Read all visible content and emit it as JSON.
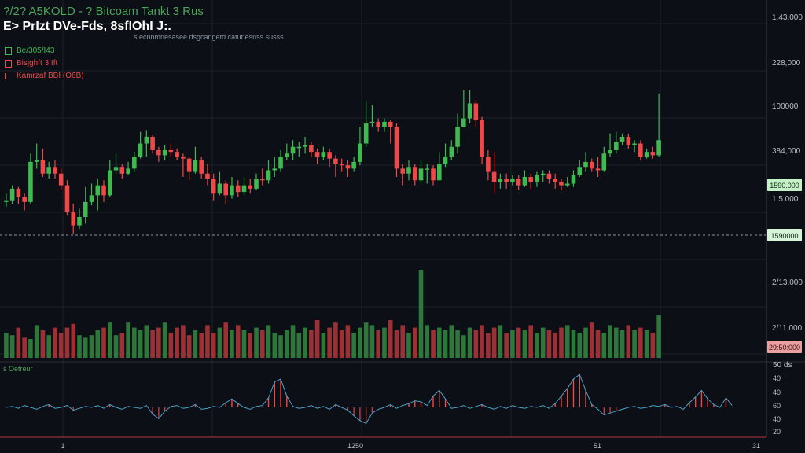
{
  "header": {
    "title": "?/2? A5KOLD - ? Bitcoam Tankt 3 Rus",
    "subtitle": "E> PrIzt DVe-Fds, 8sfIOhI J:.",
    "description": "s ecnnmnesasee dsgcangetd catunesnss susss"
  },
  "legend": [
    {
      "label": "Be/305/I43",
      "color": "#3fb950"
    },
    {
      "label": "Bisjghft 3 Ift",
      "color": "#f04848"
    },
    {
      "label": "Kamrzaf BBI (O6B)",
      "color": "#f04848"
    }
  ],
  "price_axis": {
    "labels": [
      "1.43,000",
      "228,000",
      "100000",
      "384,000",
      "1.5.000",
      "2/13,000",
      "2/11,000"
    ],
    "tag_upper": "1590.000",
    "tag_current": "1590000",
    "tag_volume": "29:50:000"
  },
  "indicator": {
    "label": "s Oetreur",
    "axis_top": "50 ds",
    "axis_labels": [
      "40",
      "40",
      "60",
      "40",
      "20"
    ]
  },
  "time_axis": {
    "labels": [
      "1",
      "1250",
      "51",
      "31"
    ]
  },
  "colors": {
    "up": "#3fb950",
    "down": "#f04848",
    "background": "#0c0f16",
    "grid": "#1b2029",
    "axis_text": "#b8bec8"
  },
  "chart_data": {
    "type": "candlestick",
    "y_range": [
      0,
      100
    ],
    "candles": [
      {
        "o": 45,
        "c": 46,
        "h": 50,
        "l": 42
      },
      {
        "o": 46,
        "c": 53,
        "h": 55,
        "l": 44
      },
      {
        "o": 53,
        "c": 48,
        "h": 54,
        "l": 44
      },
      {
        "o": 48,
        "c": 45,
        "h": 50,
        "l": 40
      },
      {
        "o": 45,
        "c": 69,
        "h": 74,
        "l": 44
      },
      {
        "o": 69,
        "c": 70,
        "h": 80,
        "l": 65
      },
      {
        "o": 70,
        "c": 62,
        "h": 77,
        "l": 60
      },
      {
        "o": 62,
        "c": 66,
        "h": 69,
        "l": 59
      },
      {
        "o": 66,
        "c": 62,
        "h": 70,
        "l": 59
      },
      {
        "o": 62,
        "c": 55,
        "h": 65,
        "l": 52
      },
      {
        "o": 55,
        "c": 39,
        "h": 58,
        "l": 37
      },
      {
        "o": 39,
        "c": 31,
        "h": 44,
        "l": 26
      },
      {
        "o": 31,
        "c": 36,
        "h": 41,
        "l": 29
      },
      {
        "o": 36,
        "c": 45,
        "h": 54,
        "l": 32
      },
      {
        "o": 45,
        "c": 49,
        "h": 56,
        "l": 43
      },
      {
        "o": 49,
        "c": 55,
        "h": 59,
        "l": 40
      },
      {
        "o": 55,
        "c": 49,
        "h": 58,
        "l": 45
      },
      {
        "o": 49,
        "c": 64,
        "h": 70,
        "l": 48
      },
      {
        "o": 64,
        "c": 66,
        "h": 74,
        "l": 62
      },
      {
        "o": 66,
        "c": 62,
        "h": 68,
        "l": 59
      },
      {
        "o": 62,
        "c": 65,
        "h": 69,
        "l": 61
      },
      {
        "o": 65,
        "c": 72,
        "h": 75,
        "l": 63
      },
      {
        "o": 72,
        "c": 80,
        "h": 87,
        "l": 71
      },
      {
        "o": 80,
        "c": 84,
        "h": 88,
        "l": 72
      },
      {
        "o": 84,
        "c": 76,
        "h": 85,
        "l": 74
      },
      {
        "o": 76,
        "c": 73,
        "h": 78,
        "l": 69
      },
      {
        "o": 73,
        "c": 76,
        "h": 79,
        "l": 70
      },
      {
        "o": 76,
        "c": 75,
        "h": 80,
        "l": 72
      },
      {
        "o": 75,
        "c": 72,
        "h": 77,
        "l": 70
      },
      {
        "o": 72,
        "c": 71,
        "h": 74,
        "l": 60
      },
      {
        "o": 71,
        "c": 63,
        "h": 72,
        "l": 58
      },
      {
        "o": 63,
        "c": 70,
        "h": 78,
        "l": 62
      },
      {
        "o": 70,
        "c": 62,
        "h": 72,
        "l": 59
      },
      {
        "o": 62,
        "c": 59,
        "h": 68,
        "l": 55
      },
      {
        "o": 59,
        "c": 50,
        "h": 62,
        "l": 46
      },
      {
        "o": 50,
        "c": 56,
        "h": 63,
        "l": 49
      },
      {
        "o": 56,
        "c": 49,
        "h": 58,
        "l": 44
      },
      {
        "o": 49,
        "c": 55,
        "h": 60,
        "l": 47
      },
      {
        "o": 55,
        "c": 51,
        "h": 58,
        "l": 48
      },
      {
        "o": 51,
        "c": 55,
        "h": 60,
        "l": 49
      },
      {
        "o": 55,
        "c": 53,
        "h": 59,
        "l": 50
      },
      {
        "o": 53,
        "c": 59,
        "h": 62,
        "l": 52
      },
      {
        "o": 59,
        "c": 58,
        "h": 65,
        "l": 55
      },
      {
        "o": 58,
        "c": 64,
        "h": 70,
        "l": 56
      },
      {
        "o": 64,
        "c": 65,
        "h": 72,
        "l": 60
      },
      {
        "o": 65,
        "c": 72,
        "h": 76,
        "l": 63
      },
      {
        "o": 72,
        "c": 74,
        "h": 80,
        "l": 70
      },
      {
        "o": 74,
        "c": 78,
        "h": 82,
        "l": 70
      },
      {
        "o": 78,
        "c": 78,
        "h": 81,
        "l": 72
      },
      {
        "o": 78,
        "c": 79,
        "h": 84,
        "l": 74
      },
      {
        "o": 79,
        "c": 75,
        "h": 81,
        "l": 72
      },
      {
        "o": 75,
        "c": 72,
        "h": 77,
        "l": 68
      },
      {
        "o": 72,
        "c": 75,
        "h": 78,
        "l": 70
      },
      {
        "o": 75,
        "c": 71,
        "h": 77,
        "l": 66
      },
      {
        "o": 71,
        "c": 68,
        "h": 73,
        "l": 60
      },
      {
        "o": 68,
        "c": 67,
        "h": 71,
        "l": 63
      },
      {
        "o": 67,
        "c": 65,
        "h": 70,
        "l": 60
      },
      {
        "o": 65,
        "c": 69,
        "h": 72,
        "l": 63
      },
      {
        "o": 69,
        "c": 80,
        "h": 90,
        "l": 67
      },
      {
        "o": 80,
        "c": 92,
        "h": 105,
        "l": 78
      },
      {
        "o": 92,
        "c": 93,
        "h": 103,
        "l": 90
      },
      {
        "o": 93,
        "c": 90,
        "h": 95,
        "l": 87
      },
      {
        "o": 90,
        "c": 93,
        "h": 95,
        "l": 87
      },
      {
        "o": 93,
        "c": 90,
        "h": 94,
        "l": 80
      },
      {
        "o": 90,
        "c": 65,
        "h": 92,
        "l": 60
      },
      {
        "o": 65,
        "c": 62,
        "h": 68,
        "l": 55
      },
      {
        "o": 62,
        "c": 66,
        "h": 70,
        "l": 58
      },
      {
        "o": 66,
        "c": 58,
        "h": 68,
        "l": 55
      },
      {
        "o": 58,
        "c": 65,
        "h": 70,
        "l": 56
      },
      {
        "o": 65,
        "c": 65,
        "h": 68,
        "l": 56
      },
      {
        "o": 65,
        "c": 58,
        "h": 67,
        "l": 55
      },
      {
        "o": 58,
        "c": 68,
        "h": 75,
        "l": 58
      },
      {
        "o": 68,
        "c": 72,
        "h": 80,
        "l": 66
      },
      {
        "o": 72,
        "c": 78,
        "h": 82,
        "l": 70
      },
      {
        "o": 78,
        "c": 90,
        "h": 98,
        "l": 74
      },
      {
        "o": 90,
        "c": 95,
        "h": 112,
        "l": 90
      },
      {
        "o": 95,
        "c": 104,
        "h": 112,
        "l": 92
      },
      {
        "o": 104,
        "c": 94,
        "h": 106,
        "l": 90
      },
      {
        "o": 94,
        "c": 72,
        "h": 96,
        "l": 68
      },
      {
        "o": 72,
        "c": 63,
        "h": 76,
        "l": 58
      },
      {
        "o": 63,
        "c": 57,
        "h": 75,
        "l": 50
      },
      {
        "o": 57,
        "c": 59,
        "h": 62,
        "l": 53
      },
      {
        "o": 59,
        "c": 57,
        "h": 62,
        "l": 53
      },
      {
        "o": 57,
        "c": 59,
        "h": 61,
        "l": 55
      },
      {
        "o": 59,
        "c": 55,
        "h": 61,
        "l": 52
      },
      {
        "o": 55,
        "c": 60,
        "h": 64,
        "l": 54
      },
      {
        "o": 60,
        "c": 57,
        "h": 62,
        "l": 53
      },
      {
        "o": 57,
        "c": 61,
        "h": 63,
        "l": 54
      },
      {
        "o": 61,
        "c": 62,
        "h": 64,
        "l": 57
      },
      {
        "o": 62,
        "c": 59,
        "h": 64,
        "l": 56
      },
      {
        "o": 59,
        "c": 57,
        "h": 62,
        "l": 53
      },
      {
        "o": 57,
        "c": 55,
        "h": 59,
        "l": 52
      },
      {
        "o": 55,
        "c": 56,
        "h": 60,
        "l": 54
      },
      {
        "o": 56,
        "c": 61,
        "h": 64,
        "l": 54
      },
      {
        "o": 61,
        "c": 66,
        "h": 70,
        "l": 60
      },
      {
        "o": 66,
        "c": 69,
        "h": 75,
        "l": 63
      },
      {
        "o": 69,
        "c": 65,
        "h": 71,
        "l": 63
      },
      {
        "o": 65,
        "c": 64,
        "h": 72,
        "l": 60
      },
      {
        "o": 64,
        "c": 74,
        "h": 78,
        "l": 63
      },
      {
        "o": 74,
        "c": 76,
        "h": 86,
        "l": 72
      },
      {
        "o": 76,
        "c": 81,
        "h": 87,
        "l": 74
      },
      {
        "o": 81,
        "c": 84,
        "h": 86,
        "l": 79
      },
      {
        "o": 84,
        "c": 79,
        "h": 86,
        "l": 77
      },
      {
        "o": 79,
        "c": 80,
        "h": 82,
        "l": 75
      },
      {
        "o": 80,
        "c": 72,
        "h": 82,
        "l": 70
      },
      {
        "o": 72,
        "c": 75,
        "h": 77,
        "l": 71
      },
      {
        "o": 75,
        "c": 73,
        "h": 78,
        "l": 71
      },
      {
        "o": 73,
        "c": 82,
        "h": 110,
        "l": 72
      }
    ],
    "volume": [
      20,
      18,
      24,
      16,
      15,
      26,
      22,
      18,
      24,
      20,
      24,
      27,
      18,
      16,
      18,
      22,
      24,
      28,
      18,
      20,
      28,
      24,
      22,
      26,
      22,
      24,
      28,
      20,
      24,
      26,
      18,
      22,
      20,
      26,
      20,
      24,
      28,
      22,
      26,
      22,
      20,
      24,
      22,
      26,
      20,
      18,
      22,
      26,
      20,
      24,
      22,
      30,
      20,
      24,
      28,
      22,
      26,
      20,
      24,
      28,
      26,
      22,
      24,
      30,
      22,
      26,
      20,
      24,
      70,
      26,
      22,
      24,
      22,
      26,
      22,
      18,
      24,
      22,
      26,
      20,
      24,
      26,
      20,
      22,
      24,
      22,
      26,
      20,
      24,
      22,
      20,
      24,
      26,
      22,
      20,
      24,
      28,
      22,
      20,
      26,
      24,
      22,
      26,
      22,
      24,
      22,
      20,
      34
    ],
    "indicator": [
      0,
      1,
      -1,
      2,
      0,
      -2,
      1,
      3,
      -1,
      0,
      2,
      -3,
      -1,
      1,
      0,
      2,
      -1,
      3,
      0,
      -2,
      1,
      0,
      -1,
      2,
      -7,
      -12,
      -4,
      1,
      2,
      -1,
      0,
      3,
      -2,
      -1,
      1,
      0,
      5,
      9,
      4,
      0,
      -2,
      1,
      2,
      10,
      27,
      30,
      12,
      1,
      -1,
      0,
      2,
      -1,
      1,
      -2,
      3,
      0,
      -3,
      -9,
      -14,
      -17,
      -6,
      -2,
      0,
      3,
      -1,
      2,
      4,
      7,
      6,
      2,
      12,
      18,
      9,
      -1,
      0,
      2,
      -1,
      1,
      3,
      0,
      -2,
      1,
      -1,
      2,
      0,
      -1,
      1,
      0,
      2,
      -1,
      4,
      12,
      20,
      30,
      35,
      18,
      3,
      -2,
      -8,
      -6,
      -4,
      -2,
      0,
      1,
      -1,
      0,
      2,
      1,
      3,
      0,
      1,
      -2,
      5,
      11,
      18,
      9,
      3,
      0,
      10,
      2
    ]
  }
}
